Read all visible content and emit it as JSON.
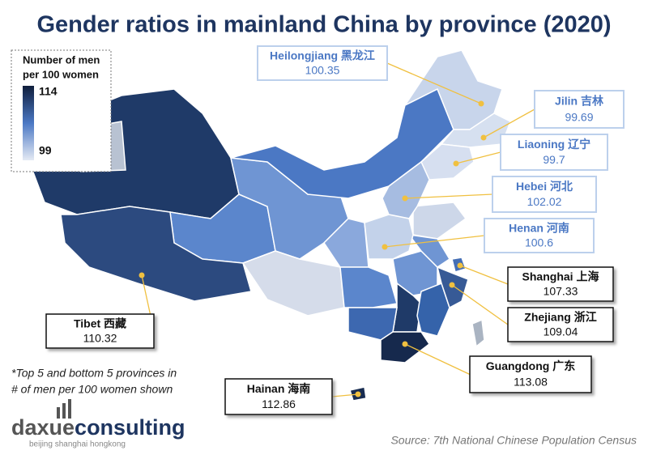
{
  "title": "Gender ratios in mainland China by province (2020)",
  "legend": {
    "title_lines": [
      "Number of men",
      "per 100 women"
    ],
    "max": 114,
    "min": 99
  },
  "callouts": [
    {
      "name": "Heilongjiang 黑龙江",
      "value": 100.35
    },
    {
      "name": "Jilin 吉林",
      "value": 99.69
    },
    {
      "name": "Liaoning 辽宁",
      "value": 99.7
    },
    {
      "name": "Hebei 河北",
      "value": 102.02
    },
    {
      "name": "Henan 河南",
      "value": 100.6
    },
    {
      "name": "Shanghai 上海",
      "value": 107.33
    },
    {
      "name": "Zhejiang 浙江",
      "value": 109.04
    },
    {
      "name": "Guangdong 广东",
      "value": 113.08
    },
    {
      "name": "Hainan 海南",
      "value": 112.86
    },
    {
      "name": "Tibet 西藏",
      "value": 110.32
    }
  ],
  "note_lines": [
    "*Top 5 and bottom 5 provinces in",
    "# of men per 100 women shown"
  ],
  "logo": {
    "brand": [
      "daxue",
      "consulting"
    ],
    "cities": "beijing shanghai hongkong"
  },
  "source": "Source: 7th National Chinese Population Census"
}
